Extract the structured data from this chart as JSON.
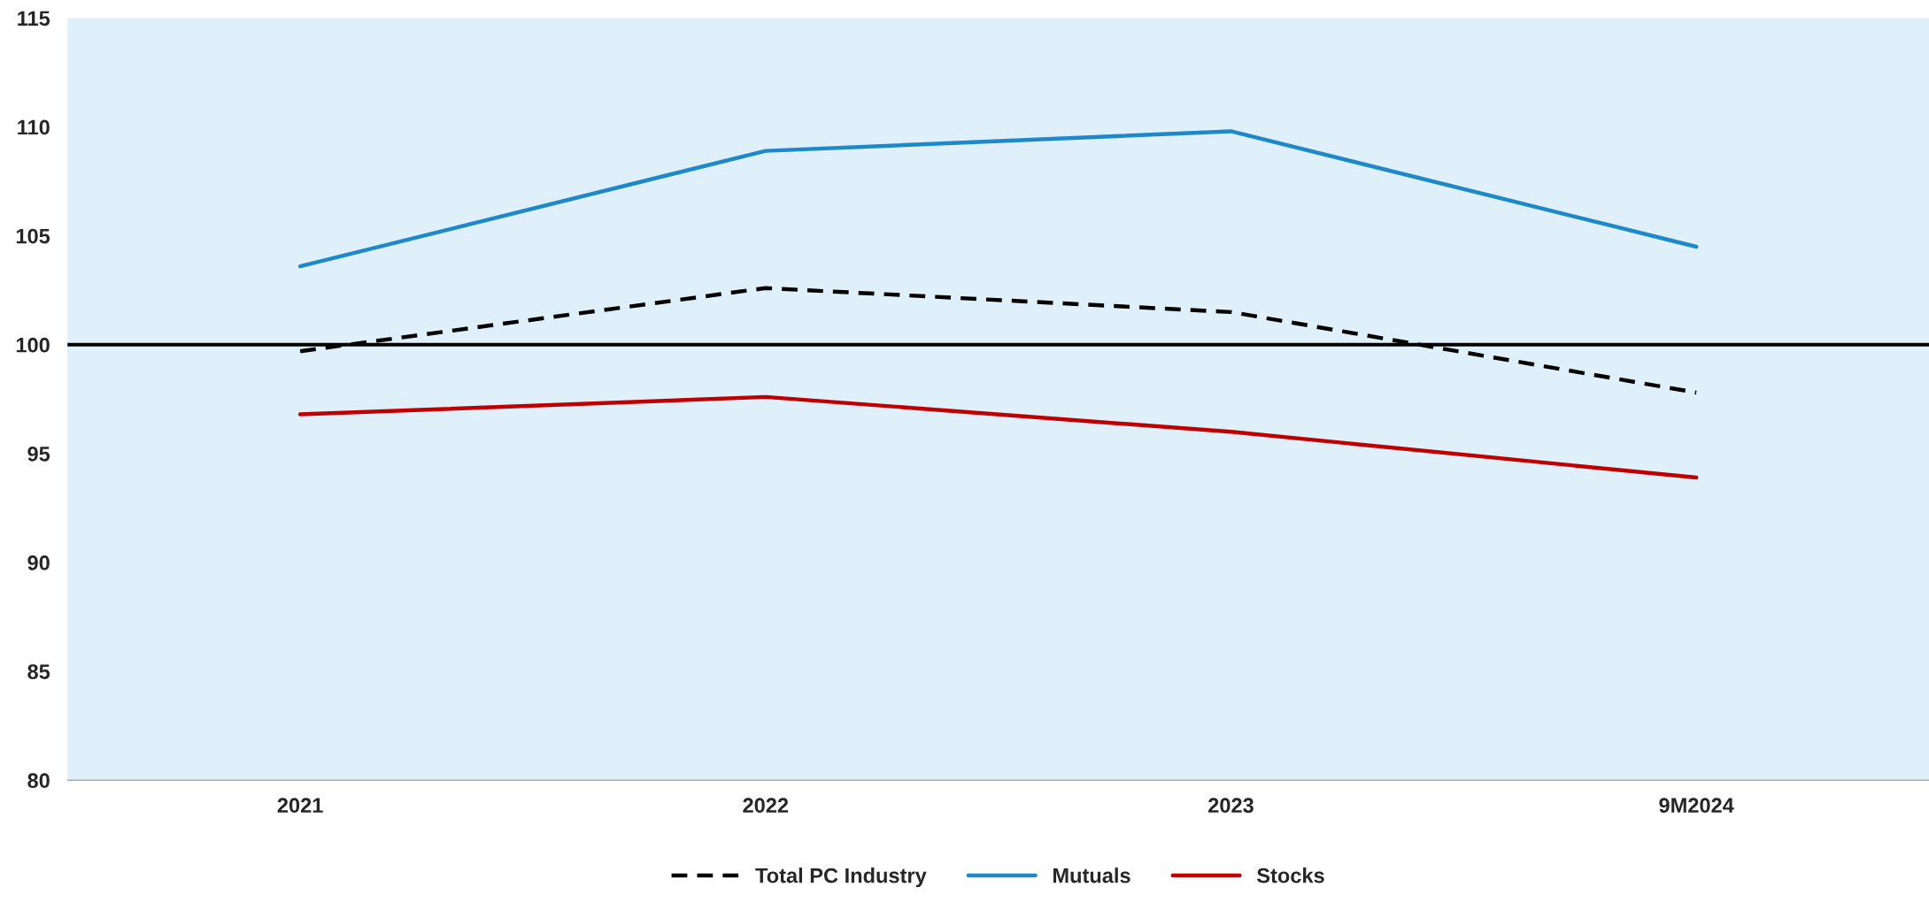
{
  "chart_data": {
    "type": "line",
    "categories": [
      "2021",
      "2022",
      "2023",
      "9M2024"
    ],
    "series": [
      {
        "name": "Total PC Industry",
        "color": "#000000",
        "line_style": "dashed",
        "values": [
          99.7,
          102.6,
          101.5,
          97.8
        ]
      },
      {
        "name": "Mutuals",
        "color": "#1f88c9",
        "line_style": "solid",
        "values": [
          103.6,
          108.9,
          109.8,
          104.5
        ]
      },
      {
        "name": "Stocks",
        "color": "#c00000",
        "line_style": "solid",
        "values": [
          96.8,
          97.6,
          96.0,
          93.9
        ]
      }
    ],
    "ylim": [
      80,
      115
    ],
    "yticks": [
      80,
      85,
      90,
      95,
      100,
      105,
      110,
      115
    ],
    "ref_lines": [
      {
        "axis": "y",
        "value": 100,
        "color": "#000000",
        "line_style": "solid"
      }
    ],
    "grid": false,
    "legend": "bottom",
    "marker": "none"
  }
}
